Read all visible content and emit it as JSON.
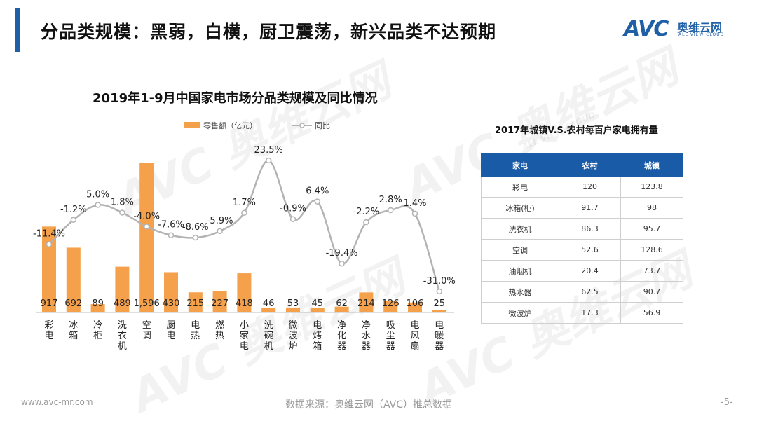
{
  "header": {
    "title": "分品类规模：黑弱，白横，厨卫震荡，新兴品类不达预期"
  },
  "logo": {
    "mark": "AVC",
    "cn": "奥维云网",
    "en": "ALL VIEW CLOUD"
  },
  "watermark": {
    "text": "AVC 奥维云网",
    "sub": "ALL VIEW CLOUD"
  },
  "chart_data": {
    "type": "bar",
    "title": "2019年1-9月中国家电市场分品类规模及同比情况",
    "legend": [
      "零售额（亿元）",
      "同比"
    ],
    "categories": [
      "彩电",
      "冰箱",
      "冷柜",
      "洗衣机",
      "空调",
      "厨电",
      "电热",
      "燃热",
      "小家电",
      "洗碗机",
      "微波炉",
      "电烤箱",
      "净化器",
      "净水器",
      "吸尘器",
      "电风扇",
      "电暖器"
    ],
    "series": [
      {
        "name": "零售额（亿元）",
        "kind": "bar",
        "color": "#f5a04a",
        "values": [
          917,
          692,
          89,
          489,
          1596,
          430,
          215,
          227,
          418,
          46,
          53,
          45,
          62,
          214,
          126,
          106,
          25
        ],
        "labels": [
          "917",
          "692",
          "89",
          "489",
          "1,596",
          "430",
          "215",
          "227",
          "418",
          "46",
          "53",
          "45",
          "62",
          "214",
          "126",
          "106",
          "25"
        ]
      },
      {
        "name": "同比",
        "kind": "line",
        "color": "#b3b3b3",
        "unit": "%",
        "values": [
          -11.4,
          -1.2,
          5.0,
          1.8,
          -4.0,
          -7.6,
          -8.6,
          -5.9,
          1.7,
          23.5,
          -0.9,
          6.4,
          -19.4,
          -2.2,
          2.8,
          1.4,
          -31.0
        ],
        "labels": [
          "-11.4%",
          "-1.2%",
          "5.0%",
          "1.8%",
          "-4.0%",
          "-7.6%",
          "-8.6%",
          "-5.9%",
          "1.7%",
          "23.5%",
          "-0.9%",
          "6.4%",
          "-19.4%",
          "-2.2%",
          "2.8%",
          "1.4%",
          "-31.0%"
        ]
      }
    ],
    "bar_range": [
      0,
      1600
    ],
    "line_range": [
      -31,
      23.5
    ]
  },
  "table": {
    "title": "2017年城镇V.S.农村每百户家电拥有量",
    "headers": [
      "家电",
      "农村",
      "城镇"
    ],
    "rows": [
      [
        "彩电",
        "120",
        "123.8"
      ],
      [
        "冰箱(柜)",
        "91.7",
        "98"
      ],
      [
        "洗衣机",
        "86.3",
        "95.7"
      ],
      [
        "空调",
        "52.6",
        "128.6"
      ],
      [
        "油烟机",
        "20.4",
        "73.7"
      ],
      [
        "热水器",
        "62.5",
        "90.7"
      ],
      [
        "微波炉",
        "17.3",
        "56.9"
      ]
    ]
  },
  "footer": {
    "url": "www.avc-mr.com",
    "source": "数据来源：奥维云网（AVC）推总数据",
    "page": "-5-"
  }
}
